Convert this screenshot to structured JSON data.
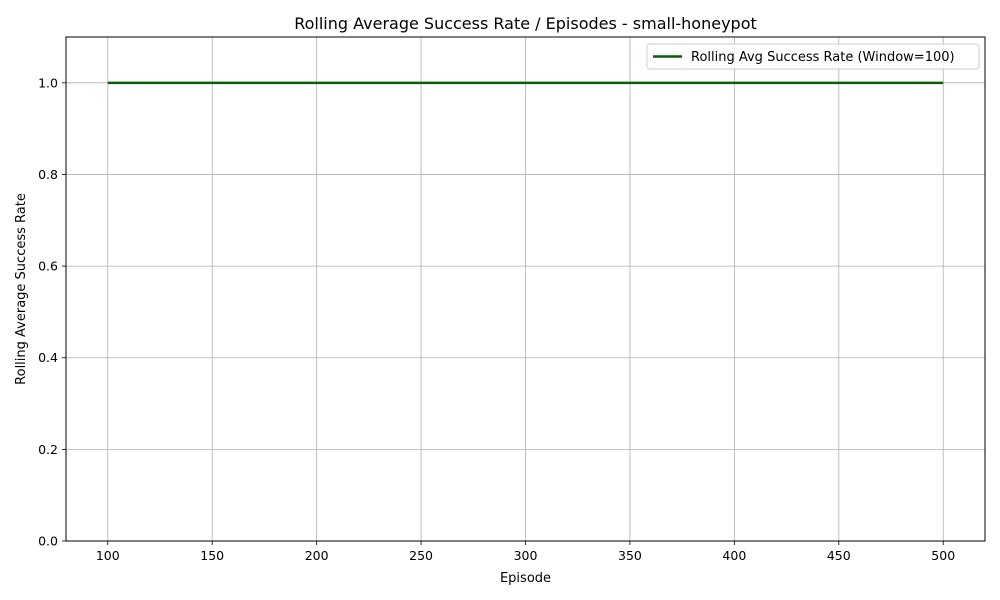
{
  "chart_data": {
    "type": "line",
    "title": "Rolling Average Success Rate / Episodes - small-honeypot",
    "xlabel": "Episode",
    "ylabel": "Rolling Average Success Rate",
    "xlim": [
      80,
      520
    ],
    "ylim": [
      0.0,
      1.1
    ],
    "xticks": [
      100,
      150,
      200,
      250,
      300,
      350,
      400,
      450,
      500
    ],
    "xtick_labels": [
      "100",
      "150",
      "200",
      "250",
      "300",
      "350",
      "400",
      "450",
      "500"
    ],
    "yticks": [
      0.0,
      0.2,
      0.4,
      0.6,
      0.8,
      1.0
    ],
    "ytick_labels": [
      "0.0",
      "0.2",
      "0.4",
      "0.6",
      "0.8",
      "1.0"
    ],
    "grid": true,
    "legend_position": "top-right",
    "series": [
      {
        "name": "Rolling Avg Success Rate (Window=100)",
        "color": "#0a5c0a",
        "x": [
          100,
          150,
          200,
          250,
          300,
          350,
          400,
          450,
          500
        ],
        "y": [
          1.0,
          1.0,
          1.0,
          1.0,
          1.0,
          1.0,
          1.0,
          1.0,
          1.0
        ]
      }
    ]
  }
}
